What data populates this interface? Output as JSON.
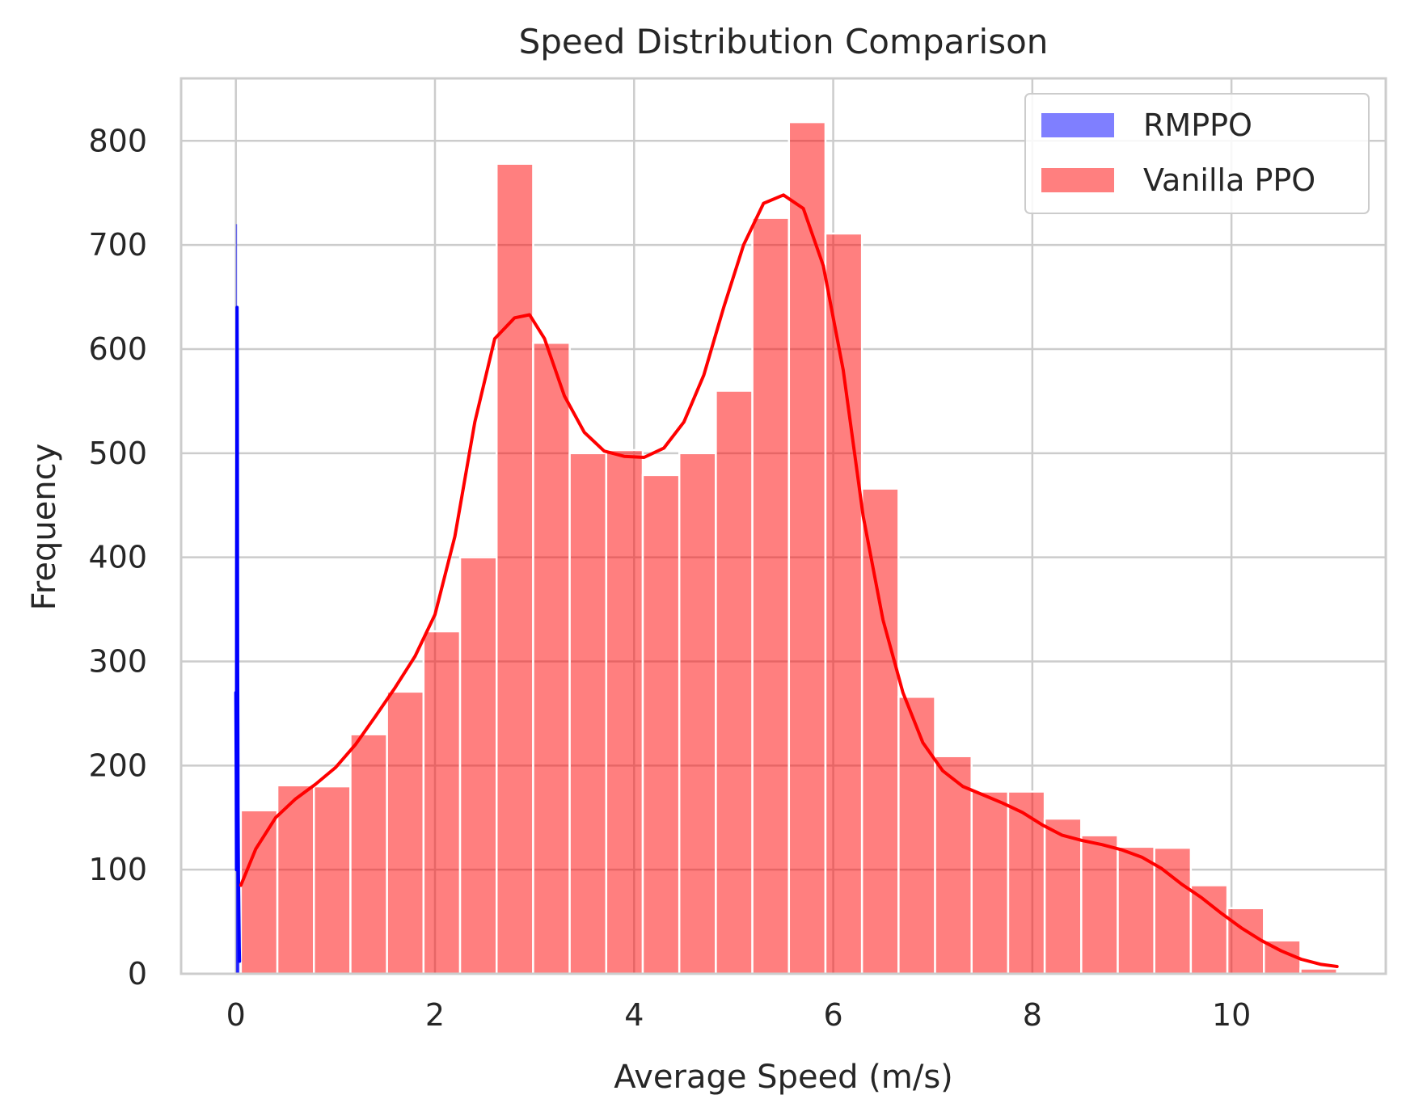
{
  "chart_data": {
    "type": "bar",
    "title": "Speed Distribution Comparison",
    "xlabel": "Average Speed (m/s)",
    "ylabel": "Frequency",
    "xlim": [
      -0.55,
      11.55
    ],
    "ylim": [
      0,
      860
    ],
    "xticks": [
      0,
      2,
      4,
      6,
      8,
      10
    ],
    "yticks": [
      0,
      100,
      200,
      300,
      400,
      500,
      600,
      700,
      800
    ],
    "grid": true,
    "legend_position": "top-right",
    "series": [
      {
        "name": "RMPPO",
        "color": "#0000ff",
        "hist_alpha": 0.5,
        "bins": [
          {
            "x0": 0.0,
            "x1": 0.004,
            "count": 720
          },
          {
            "x0": 0.004,
            "x1": 0.008,
            "count": 640
          },
          {
            "x0": 0.008,
            "x1": 0.012,
            "count": 410
          },
          {
            "x0": 0.012,
            "x1": 0.016,
            "count": 270
          },
          {
            "x0": 0.016,
            "x1": 0.02,
            "count": 190
          },
          {
            "x0": 0.02,
            "x1": 0.024,
            "count": 120
          },
          {
            "x0": 0.024,
            "x1": 0.028,
            "count": 100
          }
        ],
        "kde": {
          "x": [
            0.0,
            0.004,
            0.006,
            0.008,
            0.01,
            0.012,
            0.014,
            0.016,
            0.018,
            0.02,
            0.022,
            0.024,
            0.026,
            0.028,
            0.03,
            0.032,
            0.034,
            0.036
          ],
          "y": [
            270,
            190,
            100,
            380,
            500,
            640,
            560,
            420,
            300,
            230,
            160,
            120,
            95,
            75,
            60,
            40,
            25,
            12
          ]
        }
      },
      {
        "name": "Vanilla PPO",
        "color": "#ff0000",
        "hist_alpha": 0.5,
        "bins": [
          {
            "x0": 0.05,
            "x1": 0.417,
            "count": 157
          },
          {
            "x0": 0.417,
            "x1": 0.784,
            "count": 181
          },
          {
            "x0": 0.784,
            "x1": 1.151,
            "count": 180
          },
          {
            "x0": 1.151,
            "x1": 1.518,
            "count": 230
          },
          {
            "x0": 1.518,
            "x1": 1.885,
            "count": 271
          },
          {
            "x0": 1.885,
            "x1": 2.252,
            "count": 329
          },
          {
            "x0": 2.252,
            "x1": 2.619,
            "count": 400
          },
          {
            "x0": 2.619,
            "x1": 2.986,
            "count": 778
          },
          {
            "x0": 2.986,
            "x1": 3.353,
            "count": 606
          },
          {
            "x0": 3.353,
            "x1": 3.72,
            "count": 500
          },
          {
            "x0": 3.72,
            "x1": 4.087,
            "count": 503
          },
          {
            "x0": 4.087,
            "x1": 4.454,
            "count": 479
          },
          {
            "x0": 4.454,
            "x1": 4.821,
            "count": 500
          },
          {
            "x0": 4.821,
            "x1": 5.188,
            "count": 560
          },
          {
            "x0": 5.188,
            "x1": 5.555,
            "count": 726
          },
          {
            "x0": 5.555,
            "x1": 5.922,
            "count": 818
          },
          {
            "x0": 5.922,
            "x1": 6.289,
            "count": 711
          },
          {
            "x0": 6.289,
            "x1": 6.656,
            "count": 466
          },
          {
            "x0": 6.656,
            "x1": 7.023,
            "count": 266
          },
          {
            "x0": 7.023,
            "x1": 7.39,
            "count": 209
          },
          {
            "x0": 7.39,
            "x1": 7.757,
            "count": 175
          },
          {
            "x0": 7.757,
            "x1": 8.124,
            "count": 175
          },
          {
            "x0": 8.124,
            "x1": 8.491,
            "count": 149
          },
          {
            "x0": 8.491,
            "x1": 8.858,
            "count": 133
          },
          {
            "x0": 8.858,
            "x1": 9.225,
            "count": 122
          },
          {
            "x0": 9.225,
            "x1": 9.592,
            "count": 121
          },
          {
            "x0": 9.592,
            "x1": 9.959,
            "count": 85
          },
          {
            "x0": 9.959,
            "x1": 10.326,
            "count": 63
          },
          {
            "x0": 10.326,
            "x1": 10.693,
            "count": 32
          },
          {
            "x0": 10.693,
            "x1": 11.06,
            "count": 5
          }
        ],
        "kde": {
          "x": [
            0.05,
            0.2,
            0.4,
            0.6,
            0.8,
            1.0,
            1.2,
            1.4,
            1.6,
            1.8,
            2.0,
            2.2,
            2.4,
            2.6,
            2.8,
            2.95,
            3.1,
            3.3,
            3.5,
            3.7,
            3.9,
            4.1,
            4.3,
            4.5,
            4.7,
            4.9,
            5.1,
            5.3,
            5.5,
            5.7,
            5.9,
            6.1,
            6.3,
            6.5,
            6.7,
            6.9,
            7.1,
            7.3,
            7.5,
            7.7,
            7.9,
            8.1,
            8.3,
            8.5,
            8.7,
            8.9,
            9.1,
            9.3,
            9.5,
            9.7,
            9.9,
            10.1,
            10.3,
            10.5,
            10.7,
            10.9,
            11.06
          ],
          "y": [
            85,
            120,
            150,
            168,
            182,
            198,
            220,
            247,
            275,
            305,
            345,
            420,
            530,
            610,
            630,
            633,
            610,
            555,
            520,
            502,
            497,
            496,
            505,
            530,
            575,
            640,
            700,
            740,
            748,
            735,
            680,
            580,
            440,
            340,
            270,
            222,
            195,
            180,
            172,
            164,
            155,
            143,
            133,
            128,
            124,
            119,
            112,
            101,
            86,
            73,
            58,
            44,
            32,
            22,
            14,
            9,
            7
          ]
        }
      }
    ]
  }
}
